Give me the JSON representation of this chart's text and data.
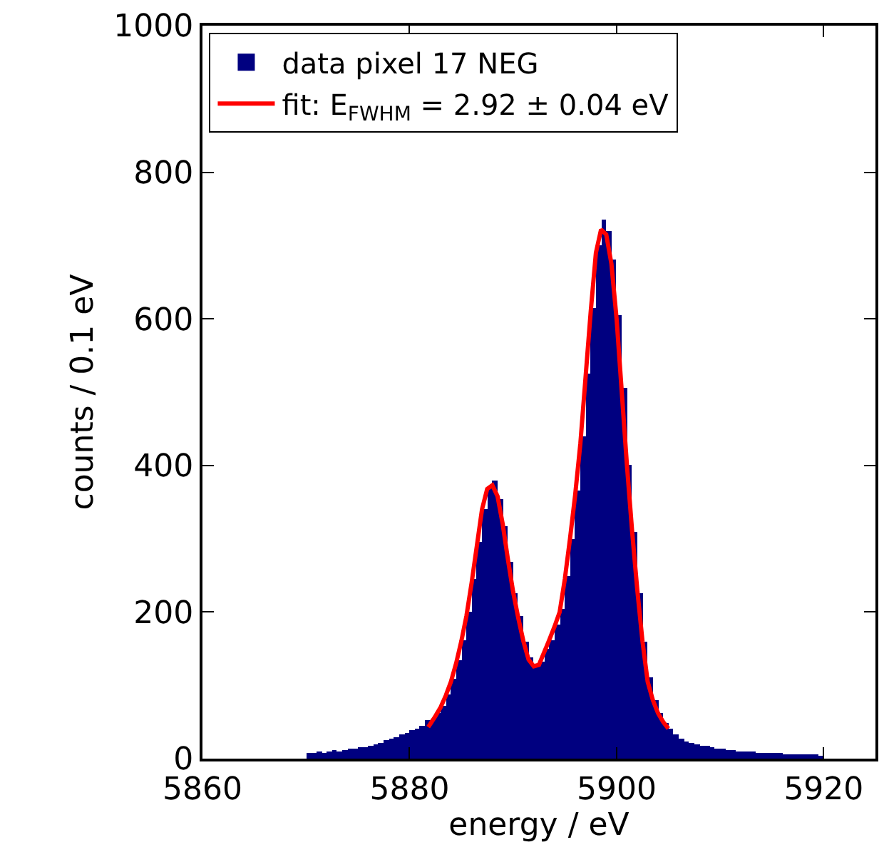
{
  "chart_data": {
    "type": "histogram",
    "xlabel": "energy / eV",
    "ylabel": "counts / 0.1 eV",
    "xlim": [
      5860,
      5925
    ],
    "xticks": [
      5860,
      5880,
      5900,
      5920
    ],
    "ylim": [
      0,
      1000
    ],
    "yticks": [
      0,
      200,
      400,
      600,
      800,
      1000
    ],
    "grid": false,
    "legend": "top",
    "marker": "none",
    "line_style": "solid",
    "series": [
      {
        "name": "data pixel 17 NEG",
        "color": "#000080",
        "bins": [
          5870,
          5870.5,
          5871,
          5871.5,
          5872,
          5872.5,
          5873,
          5873.5,
          5874,
          5874.5,
          5875,
          5875.5,
          5876,
          5876.5,
          5877,
          5877.5,
          5878,
          5878.5,
          5879,
          5879.5,
          5880,
          5880.5,
          5881,
          5881.5,
          5882,
          5882.5,
          5883,
          5883.5,
          5884,
          5884.5,
          5885,
          5885.5,
          5886,
          5886.5,
          5887,
          5887.5,
          5888,
          5888.5,
          5889,
          5889.5,
          5890,
          5890.5,
          5891,
          5891.5,
          5892,
          5892.5,
          5893,
          5893.5,
          5894,
          5894.5,
          5895,
          5895.5,
          5896,
          5896.5,
          5897,
          5897.5,
          5898,
          5898.5,
          5899,
          5899.5,
          5900,
          5900.5,
          5901,
          5901.5,
          5902,
          5902.5,
          5903,
          5903.5,
          5904,
          5904.5,
          5905,
          5905.5,
          5906,
          5906.5,
          5907,
          5907.5,
          5908,
          5908.5,
          5909,
          5909.5,
          5910,
          5910.5,
          5911,
          5911.5,
          5912,
          5912.5,
          5913,
          5913.5,
          5914,
          5914.5,
          5915,
          5915.5,
          5916,
          5916.5,
          5917,
          5917.5,
          5918,
          5918.5,
          5919,
          5919.5,
          5920
        ],
        "values": [
          7,
          8,
          9,
          8,
          10,
          11,
          10,
          12,
          13,
          14,
          15,
          16,
          18,
          20,
          22,
          25,
          28,
          30,
          33,
          36,
          38,
          40,
          45,
          52,
          55,
          62,
          72,
          88,
          108,
          135,
          162,
          200,
          245,
          295,
          340,
          370,
          380,
          355,
          318,
          268,
          225,
          195,
          160,
          138,
          128,
          132,
          150,
          162,
          182,
          205,
          250,
          300,
          365,
          440,
          525,
          615,
          700,
          735,
          720,
          680,
          605,
          505,
          400,
          310,
          225,
          160,
          110,
          80,
          62,
          48,
          40,
          33,
          28,
          24,
          22,
          20,
          18,
          17,
          15,
          14,
          13,
          12,
          11,
          10,
          10,
          9,
          9,
          8,
          8,
          7,
          7,
          7,
          6,
          6,
          6,
          5,
          5,
          5,
          5,
          4
        ]
      },
      {
        "name": "fit: E$_{FWHM}$ = 2.92 ± 0.04 eV",
        "type": "line",
        "color": "#ff0000",
        "x": [
          5881.8,
          5882,
          5882.5,
          5883,
          5883.5,
          5884,
          5884.5,
          5885,
          5885.5,
          5886,
          5886.5,
          5887,
          5887.5,
          5888,
          5888.5,
          5889,
          5889.5,
          5890,
          5890.5,
          5891,
          5891.5,
          5892,
          5892.5,
          5893,
          5893.5,
          5894,
          5894.5,
          5895,
          5895.5,
          5896,
          5896.5,
          5897,
          5897.5,
          5898,
          5898.5,
          5899,
          5899.5,
          5900,
          5900.5,
          5901,
          5901.5,
          5902,
          5902.5,
          5903,
          5903.5,
          5904,
          5904.5,
          5905
        ],
        "values": [
          43,
          47,
          58,
          70,
          86,
          105,
          130,
          160,
          195,
          240,
          290,
          340,
          368,
          373,
          358,
          320,
          272,
          228,
          192,
          160,
          135,
          126,
          128,
          145,
          162,
          180,
          200,
          245,
          300,
          360,
          430,
          520,
          610,
          690,
          722,
          715,
          675,
          600,
          500,
          400,
          310,
          230,
          160,
          105,
          80,
          62,
          50,
          41
        ]
      }
    ]
  }
}
